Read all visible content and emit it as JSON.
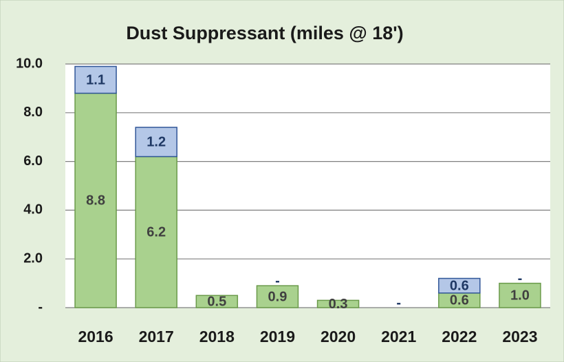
{
  "chart_data": {
    "type": "stacked-bar",
    "title": "Dust Suppressant (miles @ 18')",
    "categories": [
      "2016",
      "2017",
      "2018",
      "2019",
      "2020",
      "2021",
      "2022",
      "2023"
    ],
    "series": [
      {
        "color": "#a9d18e",
        "border": "#6a9a4a",
        "label_color": "#404040",
        "values": [
          8.8,
          6.2,
          0.5,
          0.9,
          0.3,
          0,
          0.6,
          1.0
        ],
        "value_labels": [
          "8.8",
          "6.2",
          "0.5",
          "0.9",
          "0.3",
          null,
          "0.6",
          "1.0"
        ]
      },
      {
        "color": "#b4c7e7",
        "border": "#2f5597",
        "label_color": "#1f3864",
        "values": [
          1.1,
          1.2,
          0,
          0,
          0,
          0,
          0.6,
          0
        ],
        "value_labels": [
          "1.1",
          "1.2",
          null,
          "-",
          null,
          "-",
          "0.6",
          "-"
        ]
      }
    ],
    "ylim": [
      0,
      10
    ],
    "yticks": [
      {
        "value": 0,
        "label": "-"
      },
      {
        "value": 2,
        "label": "2.0"
      },
      {
        "value": 4,
        "label": "4.0"
      },
      {
        "value": 6,
        "label": "6.0"
      },
      {
        "value": 8,
        "label": "8.0"
      },
      {
        "value": 10,
        "label": "10.0"
      }
    ],
    "grid": true
  }
}
